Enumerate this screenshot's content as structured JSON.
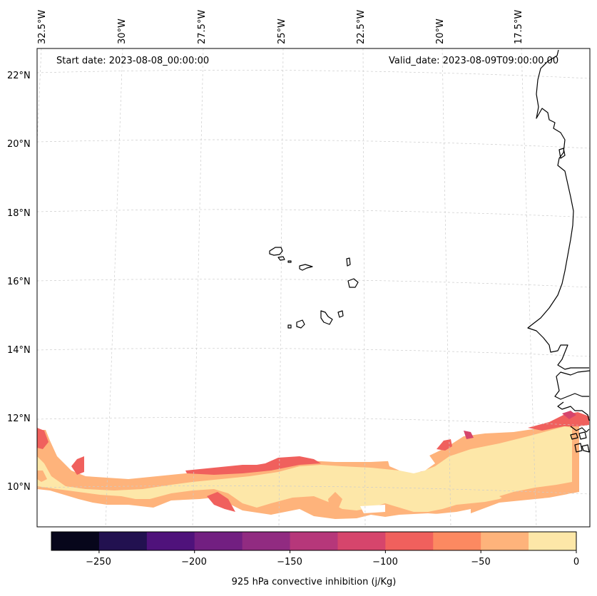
{
  "map": {
    "start_date_label": "Start date: 2023-08-08_00:00:00",
    "valid_date_label": "Valid_date: 2023-08-09T09:00:00.00",
    "longitude_labels": [
      "32.5°W",
      "30°W",
      "27.5°W",
      "25°W",
      "22.5°W",
      "20°W",
      "17.5°W"
    ],
    "latitude_labels": [
      "22°N",
      "20°N",
      "18°N",
      "16°N",
      "14°N",
      "12°N",
      "10°N"
    ]
  },
  "colorbar": {
    "label": "925 hPa convective inhibition (j/Kg)",
    "tick_labels": [
      "−250",
      "−200",
      "−150",
      "−100",
      "−50",
      "0"
    ],
    "boundaries": [
      -275,
      -250,
      -225,
      -200,
      -175,
      -150,
      -125,
      -100,
      -75,
      -50,
      -25,
      0
    ],
    "colors": [
      "#07061b",
      "#221150",
      "#4f127b",
      "#721f81",
      "#912b81",
      "#b6377a",
      "#d6456c",
      "#f0605d",
      "#fc8961",
      "#feb37b",
      "#fde7a8"
    ]
  },
  "chart_data": {
    "type": "heatmap",
    "variable": "925 hPa convective inhibition",
    "units": "j/Kg",
    "value_range": [
      -275,
      0
    ],
    "region": "Cape Verde Islands and West African coast (Mauritania, Senegal)",
    "lon_range": [
      -33,
      -16.5
    ],
    "lat_range": [
      8.9,
      22.8
    ],
    "fields": [
      {
        "level": -12.5,
        "description": "weak inhibition band along 9.5-11.5°N"
      },
      {
        "level": -37.5,
        "description": "patchy edges of the band"
      },
      {
        "level": -62.5,
        "description": "small patches near 11-12°N"
      },
      {
        "level": -87.5,
        "description": "isolated spots near 11.5°N, 18-20°W"
      }
    ]
  }
}
